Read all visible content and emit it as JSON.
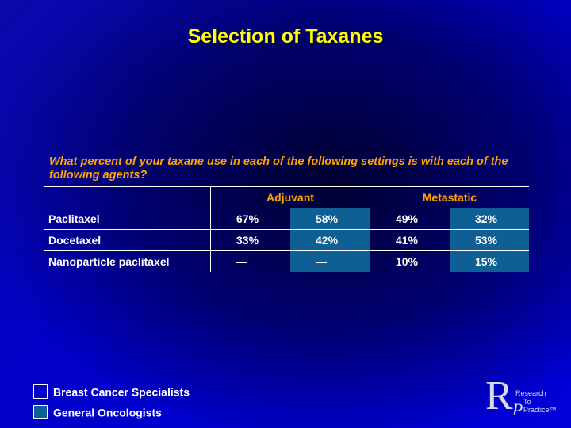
{
  "slide": {
    "title": "Selection of Taxanes",
    "question": "What percent of your taxane use in each of the following settings is with each of the following agents?"
  },
  "table": {
    "groups": [
      "Adjuvant",
      "Metastatic"
    ],
    "rows": [
      {
        "label": "Paclitaxel",
        "values": [
          "67%",
          "58%",
          "49%",
          "32%"
        ]
      },
      {
        "label": "Docetaxel",
        "values": [
          "33%",
          "42%",
          "41%",
          "53%"
        ]
      },
      {
        "label": "Nanoparticle paclitaxel",
        "values": [
          "—",
          "—",
          "10%",
          "15%"
        ]
      }
    ]
  },
  "legend": [
    {
      "label": "Breast Cancer Specialists",
      "color": "#0000c8"
    },
    {
      "label": "General Oncologists",
      "color": "#0d5f94"
    }
  ],
  "logo": {
    "letters": "RP",
    "line1": "Research",
    "line2": "To Practice™"
  }
}
